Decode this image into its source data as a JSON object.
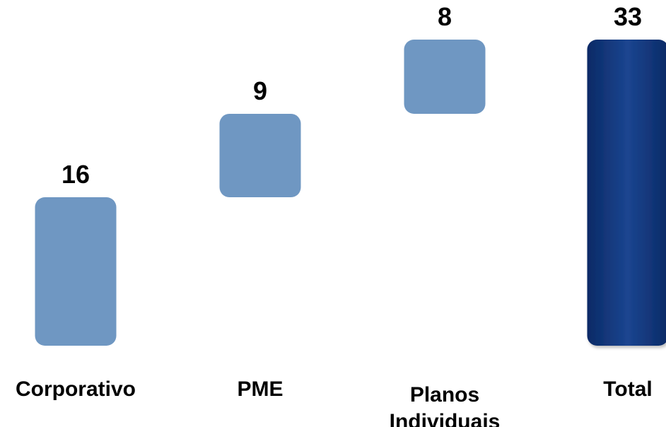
{
  "chart_data": {
    "type": "bar",
    "subtype": "waterfall",
    "categories": [
      "Corporativo",
      "PME",
      "Planos Individuais",
      "Total"
    ],
    "category_label_lines": [
      [
        "Corporativo"
      ],
      [
        "PME"
      ],
      [
        "Planos",
        "Individuais"
      ],
      [
        "Total"
      ]
    ],
    "values": [
      16,
      9,
      8,
      33
    ],
    "data_labels": [
      "16",
      "9",
      "8",
      "33"
    ],
    "kinds": [
      "step",
      "step",
      "step",
      "total"
    ],
    "ylim": [
      0,
      33
    ],
    "title": "",
    "xlabel": "",
    "ylabel": "",
    "grid": false,
    "legend": "none",
    "colors": {
      "step": "#6f97c2",
      "total": "#0b2a66",
      "total_highlight": "#1b4590",
      "labels": "#000000"
    }
  }
}
